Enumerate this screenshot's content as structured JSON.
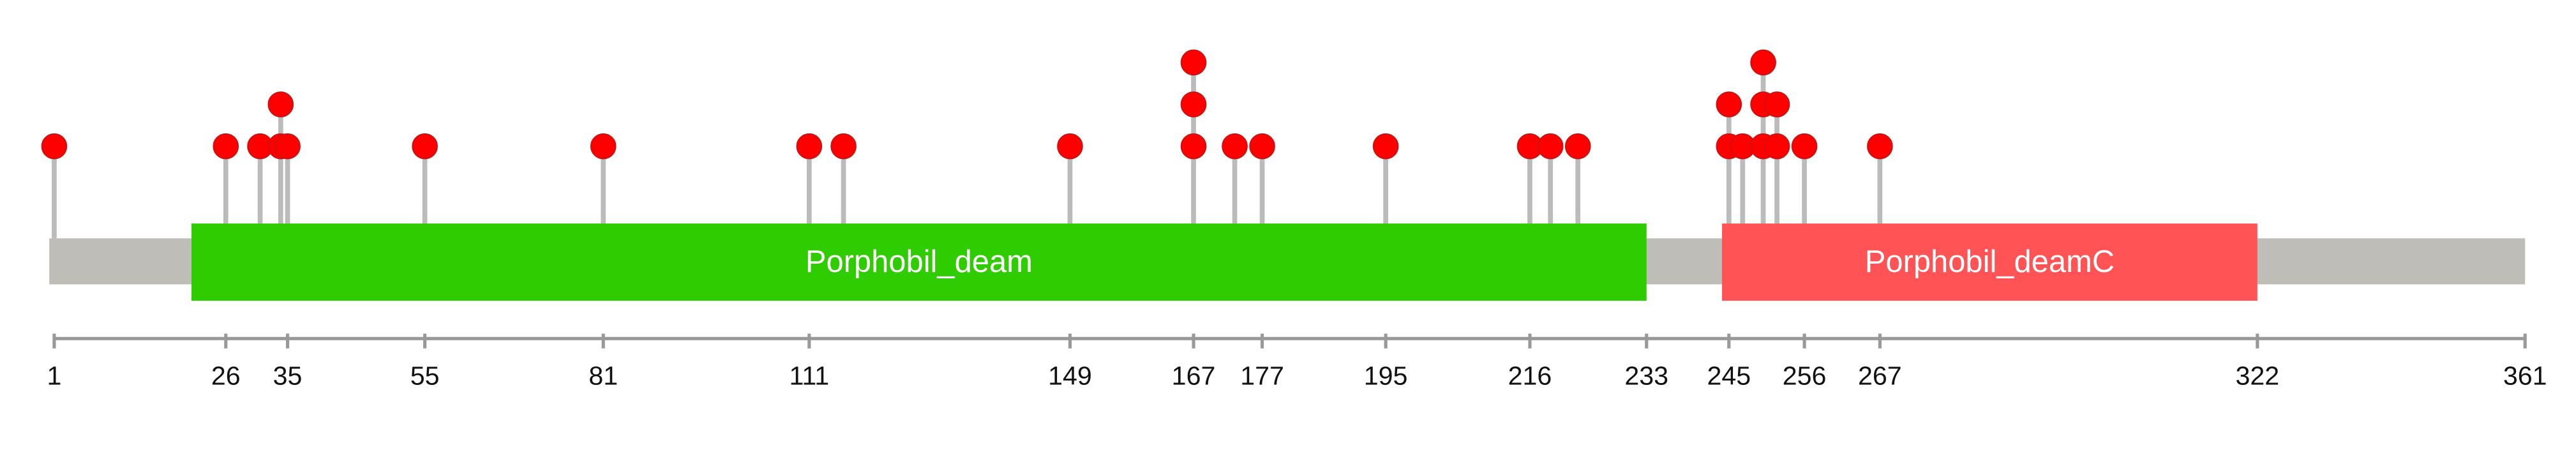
{
  "chart_data": {
    "type": "lollipop",
    "xlim": [
      1,
      361
    ],
    "xticks": [
      1,
      26,
      35,
      55,
      81,
      111,
      149,
      167,
      177,
      195,
      216,
      233,
      245,
      256,
      267,
      322,
      361
    ],
    "backbone_color": "#bebdb8",
    "stem_color": "#bbbbbb",
    "color": "#ff0000",
    "x": [
      1,
      26,
      31,
      34,
      35,
      55,
      81,
      111,
      116,
      149,
      167,
      173,
      177,
      195,
      216,
      219,
      223,
      245,
      247,
      250,
      252,
      256,
      267
    ],
    "values": [
      1,
      1,
      1,
      2,
      1,
      1,
      1,
      1,
      1,
      1,
      3,
      1,
      1,
      1,
      1,
      1,
      1,
      2,
      1,
      3,
      2,
      1,
      1
    ],
    "domains": [
      {
        "name": "Porphobil_deam",
        "start": 21,
        "end": 233,
        "color": "#2ecc00"
      },
      {
        "name": "Porphobil_deamC",
        "start": 244,
        "end": 322,
        "color": "#ff5355"
      }
    ]
  }
}
